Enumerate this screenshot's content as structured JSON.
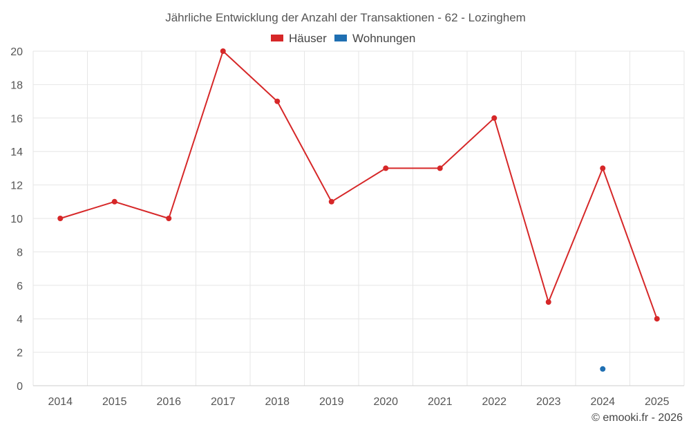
{
  "chart_data": {
    "type": "line",
    "title": "Jährliche Entwicklung der Anzahl der Transaktionen - 62 - Lozinghem",
    "categories": [
      "2014",
      "2015",
      "2016",
      "2017",
      "2018",
      "2019",
      "2020",
      "2021",
      "2022",
      "2023",
      "2024",
      "2025"
    ],
    "series": [
      {
        "name": "Häuser",
        "color": "#d62728",
        "values": [
          10,
          11,
          10,
          20,
          17,
          11,
          13,
          13,
          16,
          5,
          13,
          4
        ]
      },
      {
        "name": "Wohnungen",
        "color": "#1f6fb2",
        "values": [
          null,
          null,
          null,
          null,
          null,
          null,
          null,
          null,
          null,
          null,
          1,
          null
        ]
      }
    ],
    "ylim": [
      0,
      20
    ],
    "yticks": [
      0,
      2,
      4,
      6,
      8,
      10,
      12,
      14,
      16,
      18,
      20
    ],
    "grid": true,
    "legend": "top-center",
    "xlabel": "",
    "ylabel": ""
  },
  "credit": "© emooki.fr - 2026"
}
